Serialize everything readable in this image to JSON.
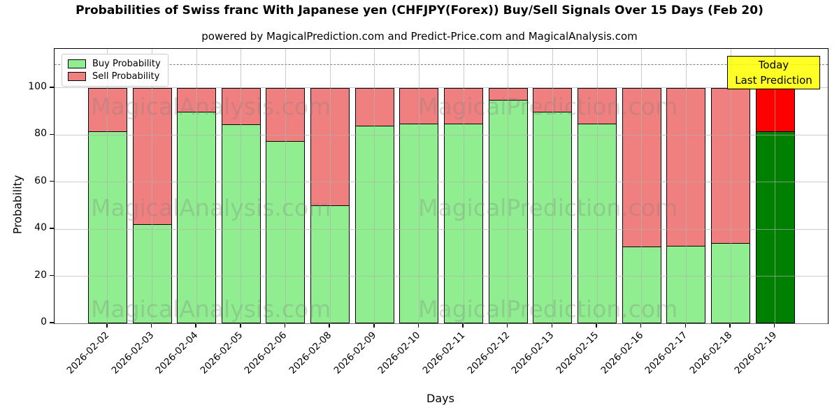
{
  "chart_data": {
    "type": "bar",
    "stacked": true,
    "title": "Probabilities of Swiss franc With Japanese yen (CHFJPY(Forex)) Buy/Sell Signals Over 15 Days (Feb 20)",
    "subtitle": "powered by MagicalPrediction.com and Predict-Price.com and MagicalAnalysis.com",
    "xlabel": "Days",
    "ylabel": "Probability",
    "yticks": [
      0,
      20,
      40,
      60,
      80,
      100
    ],
    "ylim": [
      0,
      116.6
    ],
    "grid": true,
    "legend_position": "upper left",
    "dashed_line_y": 110,
    "categories": [
      "2026-02-02",
      "2026-02-03",
      "2026-02-04",
      "2026-02-05",
      "2026-02-06",
      "2026-02-08",
      "2026-02-09",
      "2026-02-10",
      "2026-02-11",
      "2026-02-12",
      "2026-02-13",
      "2026-02-15",
      "2026-02-16",
      "2026-02-17",
      "2026-02-18",
      "2026-02-19"
    ],
    "series": [
      {
        "name": "Buy Probability",
        "color": "#90ee90",
        "values": [
          81.5,
          42,
          90,
          84.5,
          77.5,
          50,
          84,
          85,
          85,
          95,
          90,
          85,
          32.5,
          33,
          34,
          81.5
        ]
      },
      {
        "name": "Sell Probability",
        "color": "#f08080",
        "values": [
          18.5,
          58,
          10,
          15.5,
          22.5,
          50,
          16,
          15,
          15,
          5,
          10,
          15,
          67.5,
          67,
          66,
          18.5
        ]
      }
    ],
    "today": {
      "index": 15,
      "label_lines": [
        "Today",
        "Last Prediction"
      ],
      "buy_color": "#008000",
      "sell_color": "#ff0000",
      "box_color": "#ffff00"
    }
  },
  "watermarks": {
    "left": "MagicalAnalysis.com",
    "right": "MagicalPrediction.com"
  },
  "colors": {
    "grid": "#b0b0b0",
    "dashed_line": "#7f7f7f",
    "bar_edge": "#000000",
    "spine": "#000000",
    "background": "#ffffff"
  }
}
